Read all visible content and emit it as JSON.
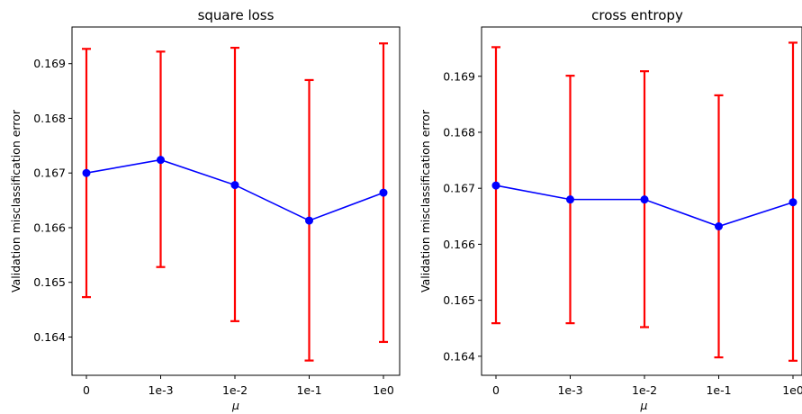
{
  "chart_data": [
    {
      "type": "line",
      "title": "square loss",
      "xlabel": "μ",
      "ylabel": "Validation misclassification error",
      "categories": [
        "0",
        "1e-3",
        "1e-2",
        "1e-1",
        "1e0"
      ],
      "series": [
        {
          "values": [
            0.167,
            0.16724,
            0.16678,
            0.16613,
            0.16664
          ],
          "error_low": [
            0.16473,
            0.16528,
            0.16429,
            0.16357,
            0.16391
          ],
          "error_high": [
            0.16927,
            0.16922,
            0.16929,
            0.1687,
            0.16937
          ]
        }
      ],
      "yticks": [
        "0.164",
        "0.165",
        "0.166",
        "0.167",
        "0.168",
        "0.169"
      ],
      "ylim": [
        0.1633,
        0.16967
      ],
      "grid": false,
      "colors": {
        "line": "#0000ff",
        "errorbar": "#ff0000"
      }
    },
    {
      "type": "line",
      "title": "cross entropy",
      "xlabel": "μ",
      "ylabel": "Validation misclassification error",
      "categories": [
        "0",
        "1e-3",
        "1e-2",
        "1e-1",
        "1e0"
      ],
      "series": [
        {
          "values": [
            0.16705,
            0.1668,
            0.1668,
            0.16632,
            0.16675
          ],
          "error_low": [
            0.16459,
            0.16459,
            0.16452,
            0.16398,
            0.16392
          ],
          "error_high": [
            0.16952,
            0.16901,
            0.16909,
            0.16866,
            0.1696
          ]
        }
      ],
      "yticks": [
        "0.164",
        "0.165",
        "0.166",
        "0.167",
        "0.168",
        "0.169"
      ],
      "ylim": [
        0.16366,
        0.16988
      ],
      "grid": false,
      "colors": {
        "line": "#0000ff",
        "errorbar": "#ff0000"
      }
    }
  ]
}
